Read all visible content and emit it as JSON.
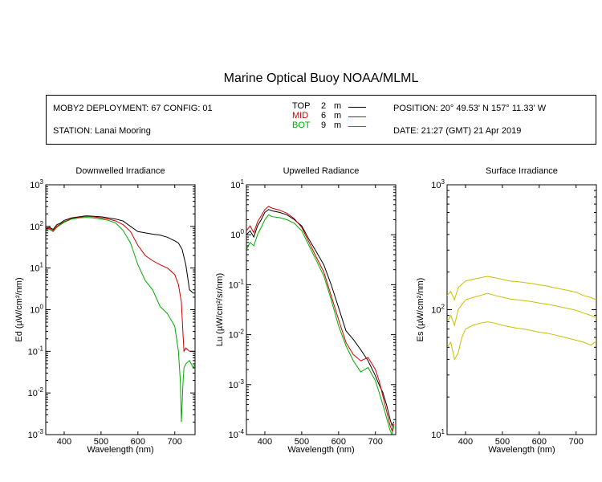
{
  "title": "Marine Optical Buoy NOAA/MLML",
  "info": {
    "deployment": "MOBY2 DEPLOYMENT: 67 CONFIG: 01",
    "station": "STATION: Lanai Mooring",
    "position": "POSITION: 20° 49.53' N   157° 11.33' W",
    "date": "DATE: 21:27 (GMT) 21 Apr 2019"
  },
  "legend": [
    {
      "name": "TOP",
      "depth": "2",
      "unit": "m",
      "color": "#000000"
    },
    {
      "name": "MID",
      "depth": "6",
      "unit": "m",
      "color": "#cc0000"
    },
    {
      "name": "BOT",
      "depth": "9",
      "unit": "m",
      "color": "#00aa00"
    }
  ],
  "chart_data": [
    {
      "type": "line",
      "title": "Downwelled Irradiance",
      "xlabel": "Wavelength (nm)",
      "ylabel": "Ed  (µW/cm²/nm)",
      "xlim": [
        350,
        755
      ],
      "ylim": [
        0.001,
        1000
      ],
      "yscale": "log",
      "xticks": [
        400,
        500,
        600,
        700
      ],
      "yticks": [
        {
          "base": "10",
          "exp": "-3"
        },
        {
          "base": "10",
          "exp": "-2"
        },
        {
          "base": "10",
          "exp": "-1"
        },
        {
          "base": "10",
          "exp": "0"
        },
        {
          "base": "10",
          "exp": "1"
        },
        {
          "base": "10",
          "exp": "2"
        },
        {
          "base": "10",
          "exp": "3"
        }
      ],
      "series": [
        {
          "name": "TOP",
          "color": "#000000",
          "x": [
            350,
            360,
            370,
            380,
            390,
            400,
            420,
            440,
            460,
            480,
            500,
            520,
            540,
            560,
            580,
            600,
            620,
            640,
            660,
            680,
            700,
            710,
            720,
            730,
            740,
            750,
            755
          ],
          "y": [
            90,
            95,
            85,
            110,
            120,
            140,
            160,
            170,
            180,
            175,
            170,
            160,
            150,
            135,
            100,
            75,
            70,
            65,
            62,
            55,
            45,
            40,
            28,
            12,
            3,
            2.5,
            2.5
          ]
        },
        {
          "name": "MID",
          "color": "#cc0000",
          "x": [
            350,
            360,
            370,
            380,
            390,
            400,
            420,
            440,
            460,
            480,
            500,
            520,
            540,
            560,
            580,
            600,
            620,
            640,
            660,
            680,
            700,
            710,
            718,
            722,
            725,
            730,
            740,
            750,
            755
          ],
          "y": [
            85,
            90,
            80,
            100,
            115,
            130,
            155,
            165,
            175,
            170,
            160,
            150,
            135,
            110,
            75,
            35,
            20,
            15,
            12,
            10,
            7,
            4,
            1.5,
            0.3,
            0.1,
            0.12,
            0.1,
            0.1,
            0.1
          ]
        },
        {
          "name": "BOT",
          "color": "#00aa00",
          "x": [
            350,
            360,
            370,
            380,
            390,
            400,
            420,
            440,
            460,
            480,
            500,
            520,
            540,
            560,
            580,
            600,
            620,
            640,
            660,
            680,
            700,
            710,
            715,
            718,
            722,
            725,
            730,
            740,
            750,
            755
          ],
          "y": [
            80,
            85,
            75,
            95,
            110,
            125,
            150,
            160,
            165,
            160,
            150,
            140,
            120,
            80,
            40,
            12,
            5,
            3,
            1.2,
            0.8,
            0.4,
            0.1,
            0.02,
            0.002,
            0.015,
            0.04,
            0.05,
            0.06,
            0.04,
            0.05
          ]
        }
      ]
    },
    {
      "type": "line",
      "title": "Upwelled Radiance",
      "xlabel": "Wavelength (nm)",
      "ylabel": "Lu  (µW/cm²/sr/nm)",
      "xlim": [
        350,
        755
      ],
      "ylim": [
        0.0001,
        10
      ],
      "yscale": "log",
      "xticks": [
        400,
        500,
        600,
        700
      ],
      "yticks": [
        {
          "base": "10",
          "exp": "-4"
        },
        {
          "base": "10",
          "exp": "-3"
        },
        {
          "base": "10",
          "exp": "-2"
        },
        {
          "base": "10",
          "exp": "-1"
        },
        {
          "base": "10",
          "exp": "0"
        },
        {
          "base": "10",
          "exp": "1"
        }
      ],
      "series": [
        {
          "name": "TOP",
          "color": "#000000",
          "x": [
            350,
            360,
            370,
            380,
            390,
            400,
            410,
            420,
            440,
            460,
            480,
            500,
            520,
            540,
            560,
            580,
            600,
            620,
            640,
            660,
            680,
            700,
            710,
            720,
            730,
            740,
            745,
            750
          ],
          "y": [
            1.0,
            1.2,
            0.9,
            1.5,
            2.0,
            2.8,
            3.2,
            3.0,
            2.8,
            2.5,
            2.0,
            1.5,
            0.8,
            0.45,
            0.25,
            0.1,
            0.035,
            0.012,
            0.008,
            0.005,
            0.003,
            0.0015,
            0.001,
            0.0007,
            0.0004,
            0.0002,
            0.00015,
            0.00018
          ]
        },
        {
          "name": "MID",
          "color": "#cc0000",
          "x": [
            350,
            360,
            370,
            380,
            390,
            400,
            410,
            420,
            440,
            460,
            480,
            500,
            520,
            540,
            560,
            580,
            600,
            620,
            640,
            660,
            680,
            700,
            710,
            720,
            730,
            740,
            745,
            750
          ],
          "y": [
            1.2,
            1.5,
            1.1,
            1.8,
            2.4,
            3.2,
            3.7,
            3.4,
            3.1,
            2.7,
            2.1,
            1.4,
            0.7,
            0.35,
            0.18,
            0.06,
            0.02,
            0.007,
            0.004,
            0.003,
            0.0035,
            0.002,
            0.0012,
            0.0006,
            0.0003,
            0.00015,
            0.00012,
            0.00016
          ]
        },
        {
          "name": "BOT",
          "color": "#00aa00",
          "x": [
            350,
            360,
            370,
            380,
            390,
            400,
            410,
            420,
            440,
            460,
            480,
            500,
            520,
            540,
            560,
            580,
            600,
            620,
            640,
            660,
            680,
            700,
            710,
            720,
            730,
            740,
            745,
            750
          ],
          "y": [
            0.5,
            0.7,
            0.6,
            1.0,
            1.4,
            2.0,
            2.5,
            2.3,
            2.2,
            2.0,
            1.7,
            1.2,
            0.6,
            0.3,
            0.15,
            0.05,
            0.015,
            0.006,
            0.003,
            0.0018,
            0.0022,
            0.0012,
            0.0007,
            0.0004,
            0.00022,
            0.00012,
            0.0001,
            0.00015
          ]
        }
      ]
    },
    {
      "type": "line",
      "title": "Surface Irradiance",
      "xlabel": "Wavelength (nm)",
      "ylabel": "Es  (µW/cm²/nm)",
      "xlim": [
        350,
        755
      ],
      "ylim": [
        10,
        1000
      ],
      "yscale": "log",
      "xticks": [
        400,
        500,
        600,
        700
      ],
      "yticks": [
        {
          "base": "10",
          "exp": "1"
        },
        {
          "base": "10",
          "exp": "2"
        },
        {
          "base": "10",
          "exp": "3"
        }
      ],
      "series": [
        {
          "name": "",
          "color": "#c8c000",
          "x": [
            350,
            360,
            370,
            380,
            390,
            400,
            420,
            440,
            460,
            480,
            500,
            520,
            540,
            560,
            580,
            600,
            620,
            640,
            660,
            680,
            700,
            720,
            740,
            755
          ],
          "y": [
            130,
            140,
            120,
            150,
            160,
            170,
            175,
            180,
            185,
            180,
            175,
            170,
            168,
            165,
            162,
            158,
            155,
            150,
            146,
            142,
            138,
            130,
            125,
            120
          ]
        },
        {
          "name": "",
          "color": "#c8c000",
          "x": [
            350,
            360,
            370,
            380,
            390,
            400,
            420,
            440,
            460,
            480,
            500,
            520,
            540,
            560,
            580,
            600,
            620,
            640,
            660,
            680,
            700,
            720,
            740,
            755
          ],
          "y": [
            80,
            90,
            75,
            100,
            110,
            120,
            125,
            130,
            135,
            130,
            126,
            122,
            120,
            118,
            116,
            113,
            111,
            108,
            105,
            102,
            99,
            94,
            90,
            86
          ]
        },
        {
          "name": "",
          "color": "#c8c000",
          "x": [
            350,
            360,
            370,
            380,
            390,
            400,
            420,
            440,
            460,
            480,
            500,
            520,
            540,
            560,
            580,
            600,
            620,
            640,
            660,
            680,
            700,
            720,
            740,
            755
          ],
          "y": [
            50,
            55,
            40,
            45,
            60,
            70,
            75,
            78,
            80,
            78,
            75,
            73,
            71,
            70,
            68,
            66,
            65,
            63,
            61,
            59,
            57,
            55,
            52,
            56
          ]
        }
      ]
    }
  ]
}
